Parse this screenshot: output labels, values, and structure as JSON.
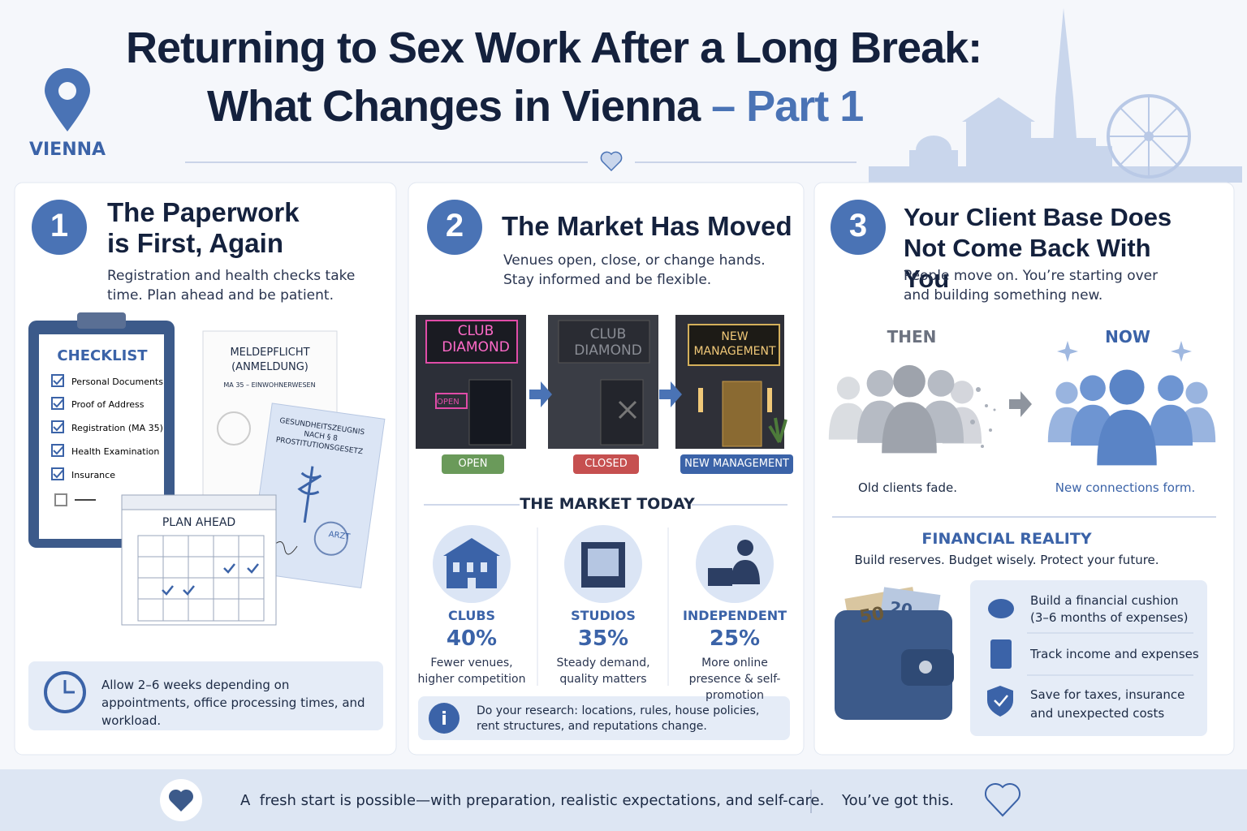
{
  "header": {
    "title_line1": "Returning to Sex Work After a Long Break:",
    "title_line2": "What Changes in Vienna",
    "title_highlight": "– Part 1",
    "location": "VIENNA"
  },
  "panels": [
    {
      "number": "1",
      "title": "The Paperwork is First, Again",
      "text": "Registration and health checks take time. Plan ahead and be patient.",
      "checklist": {
        "title": "CHECKLIST",
        "items": [
          "Personal Documents",
          "Proof of Address",
          "Registration (MA 35)",
          "Health Examination",
          "Insurance"
        ]
      },
      "registration_form": {
        "title": "MELDEPFLICHT (ANMELDUNG)",
        "subtitle": "MA 35 – EINWOHNERWESEN"
      },
      "health_certificate": {
        "title": "GESUNDHEITSZEUGNIS NACH § 8 PROSTITUTIONSGESETZ",
        "stamp": "ARZT"
      },
      "calendar": "PLAN AHEAD",
      "note": "Allow 2–6 weeks depending on appointments, office processing times, and workload."
    },
    {
      "number": "2",
      "title": "The Market Has Moved",
      "text": "Venues open, close, or change hands. Stay informed and be flexible.",
      "venues": [
        {
          "sign": "CLUB DIAMOND",
          "door_sign": "OPEN",
          "status": "OPEN"
        },
        {
          "sign": "CLUB DIAMOND",
          "status": "CLOSED"
        },
        {
          "sign": "NEW MANAGEMENT",
          "status": "NEW MANAGEMENT"
        }
      ],
      "section_title": "THE MARKET TODAY",
      "segments": [
        {
          "label": "CLUBS",
          "share": "40%",
          "text": "Fewer venues, higher competition"
        },
        {
          "label": "STUDIOS",
          "share": "35%",
          "text": "Steady demand, quality matters"
        },
        {
          "label": "INDEPENDENT",
          "share": "25%",
          "text": "More online presence & self-promotion"
        }
      ],
      "note": "Do your research: locations, rules, house policies, rent structures, and reputations change."
    },
    {
      "number": "3",
      "title": "Your Client Base Does Not Come Back With You",
      "text": "People move on. You’re starting over and building something new.",
      "then": {
        "label": "THEN",
        "caption": "Old clients fade."
      },
      "now": {
        "label": "NOW",
        "caption": "New connections form."
      },
      "financial": {
        "title": "FINANCIAL REALITY",
        "subtitle": "Build reserves. Budget wisely. Protect your future.",
        "banknotes": [
          "50",
          "20"
        ],
        "tips": [
          "Build a financial cushion (3–6 months of expenses)",
          "Track income and expenses",
          "Save for taxes, insurance and unexpected costs"
        ]
      }
    }
  ],
  "footer": {
    "message": "A  fresh start is possible—with preparation, realistic expectations, and self-care.",
    "closing": "You’ve got this."
  }
}
